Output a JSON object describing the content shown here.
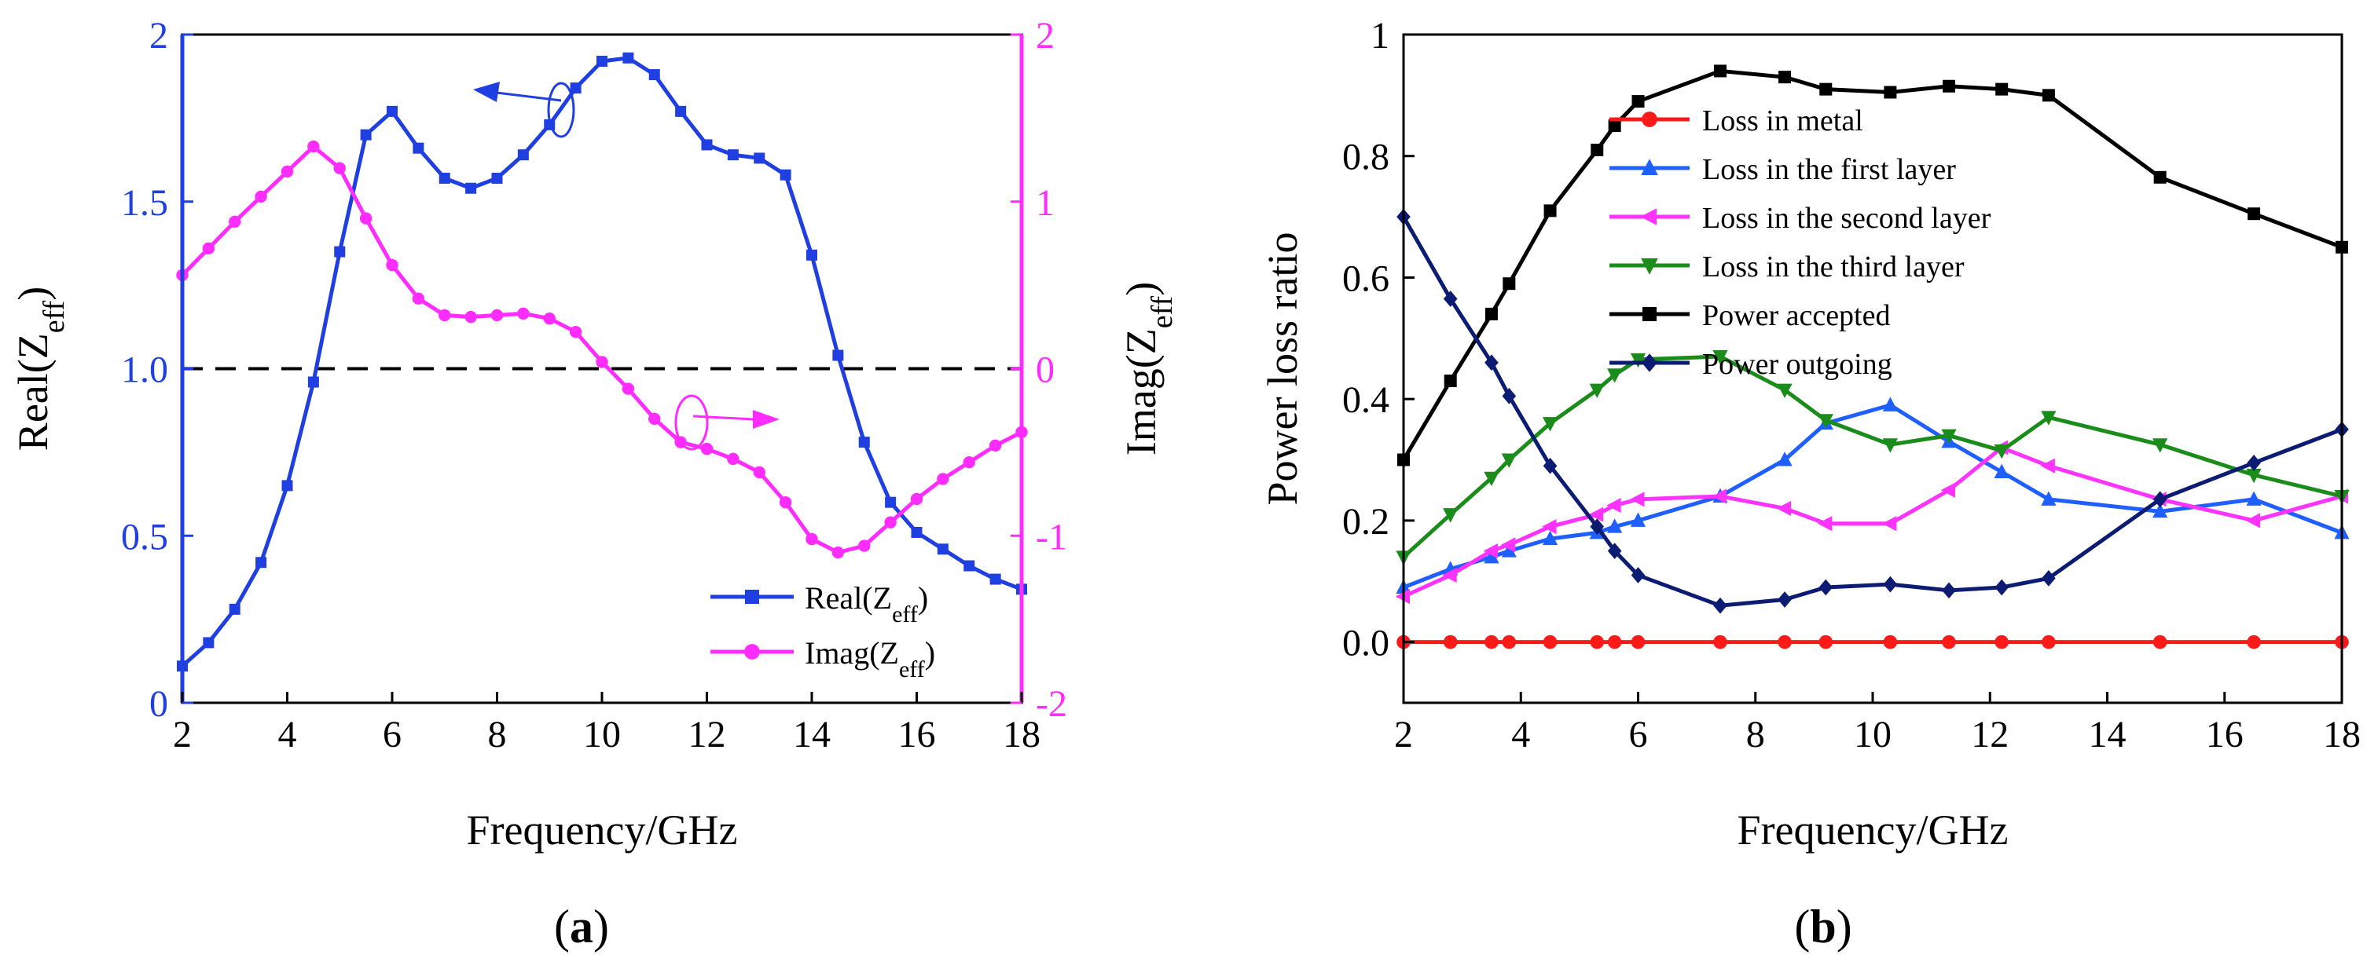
{
  "chart_data": [
    {
      "id": "a",
      "type": "line",
      "panel_label": "a",
      "xlabel": "Frequency/GHz",
      "xlim": [
        2,
        18
      ],
      "xticks": [
        2,
        4,
        6,
        8,
        10,
        12,
        14,
        16,
        18
      ],
      "ylabel_left_main": "Real(Z",
      "ylabel_left_sub": "eff",
      "ylabel_left_close": ")",
      "ylim_left": [
        0,
        2
      ],
      "yticks_left": [
        0,
        0.5,
        1.0,
        1.5,
        2
      ],
      "ytick_labels_left": [
        "0",
        "0.5",
        "1.0",
        "1.5",
        "2"
      ],
      "ylabel_right_main": "Imag(Z",
      "ylabel_right_sub": "eff",
      "ylabel_right_close": ")",
      "ylim_right": [
        -2,
        2
      ],
      "yticks_right": [
        -2,
        -1,
        0,
        1,
        2
      ],
      "ytick_labels_right": [
        "-2",
        "-1",
        "0",
        "1",
        "2"
      ],
      "reference_line": {
        "axis": "left",
        "y": 1.0,
        "style": "dashed",
        "color": "#000000"
      },
      "legend": {
        "position": "bottom-right"
      },
      "series": [
        {
          "name_main": "Real(Z",
          "name_sub": "eff",
          "name_close": ")",
          "axis": "left",
          "color": "#1f3fe0",
          "marker": "square",
          "x": [
            2,
            2.5,
            3,
            3.5,
            4,
            4.5,
            5,
            5.5,
            6,
            6.5,
            7,
            7.5,
            8,
            8.5,
            9,
            9.5,
            10,
            10.5,
            11,
            11.5,
            12,
            12.5,
            13,
            13.5,
            14,
            14.5,
            15,
            15.5,
            16,
            16.5,
            17,
            17.5,
            18
          ],
          "values": [
            0.11,
            0.18,
            0.28,
            0.42,
            0.65,
            0.96,
            1.35,
            1.7,
            1.77,
            1.66,
            1.57,
            1.54,
            1.57,
            1.64,
            1.73,
            1.84,
            1.92,
            1.93,
            1.88,
            1.77,
            1.67,
            1.64,
            1.63,
            1.58,
            1.34,
            1.04,
            0.78,
            0.6,
            0.51,
            0.46,
            0.41,
            0.37,
            0.34
          ]
        },
        {
          "name_main": "Imag(Z",
          "name_sub": "eff",
          "name_close": ")",
          "axis": "right",
          "color": "#ff2cff",
          "marker": "circle",
          "x": [
            2,
            2.5,
            3,
            3.5,
            4,
            4.5,
            5,
            5.5,
            6,
            6.5,
            7,
            7.5,
            8,
            8.5,
            9,
            9.5,
            10,
            10.5,
            11,
            11.5,
            12,
            12.5,
            13,
            13.5,
            14,
            14.5,
            15,
            15.5,
            16,
            16.5,
            17,
            17.5,
            18
          ],
          "values": [
            0.56,
            0.72,
            0.88,
            1.03,
            1.18,
            1.33,
            1.2,
            0.9,
            0.62,
            0.42,
            0.32,
            0.31,
            0.32,
            0.33,
            0.3,
            0.22,
            0.04,
            -0.12,
            -0.3,
            -0.44,
            -0.48,
            -0.54,
            -0.62,
            -0.8,
            -1.02,
            -1.1,
            -1.06,
            -0.92,
            -0.78,
            -0.66,
            -0.56,
            -0.46,
            -0.38
          ]
        }
      ]
    },
    {
      "id": "b",
      "type": "line",
      "panel_label": "b",
      "xlabel": "Frequency/GHz",
      "ylabel": "Power loss ratio",
      "xlim": [
        2,
        18
      ],
      "xticks": [
        2,
        4,
        6,
        8,
        10,
        12,
        14,
        16,
        18
      ],
      "ylim": [
        -0.1,
        1.0
      ],
      "yticks": [
        0.0,
        0.2,
        0.4,
        0.6,
        0.8,
        1.0
      ],
      "ytick_labels": [
        "0.0",
        "0.2",
        "0.4",
        "0.6",
        "0.8",
        "1"
      ],
      "legend": {
        "position": "top-right"
      },
      "x": [
        2,
        2.8,
        3.5,
        3.8,
        4.5,
        5.3,
        5.6,
        6.0,
        7.4,
        8.5,
        9.2,
        10.3,
        11.3,
        12.2,
        13.0,
        14.9,
        16.5,
        18
      ],
      "series": [
        {
          "name": "Loss in metal",
          "color": "#ff1a1a",
          "marker": "circle",
          "values": [
            0.0,
            0.0,
            0.0,
            0.0,
            0.0,
            0.0,
            0.0,
            0.0,
            0.0,
            0.0,
            0.0,
            0.0,
            0.0,
            0.0,
            0.0,
            0.0,
            0.0,
            0.0
          ]
        },
        {
          "name": "Loss in the first layer",
          "color": "#1f5fff",
          "marker": "triangle-up",
          "values": [
            0.09,
            0.12,
            0.14,
            0.15,
            0.17,
            0.18,
            0.19,
            0.2,
            0.24,
            0.3,
            0.36,
            0.39,
            0.33,
            0.28,
            0.235,
            0.215,
            0.235,
            0.18
          ]
        },
        {
          "name": "Loss in the second layer",
          "color": "#ff33ff",
          "marker": "triangle-left",
          "values": [
            0.075,
            0.11,
            0.15,
            0.16,
            0.19,
            0.21,
            0.225,
            0.235,
            0.24,
            0.22,
            0.195,
            0.195,
            0.25,
            0.32,
            0.29,
            0.235,
            0.2,
            0.24
          ]
        },
        {
          "name": "Loss in the third layer",
          "color": "#1a8c1a",
          "marker": "triangle-down",
          "values": [
            0.14,
            0.21,
            0.27,
            0.3,
            0.36,
            0.415,
            0.44,
            0.465,
            0.47,
            0.415,
            0.365,
            0.325,
            0.34,
            0.315,
            0.37,
            0.325,
            0.275,
            0.24
          ]
        },
        {
          "name": "Power accepted",
          "color": "#000000",
          "marker": "square",
          "values": [
            0.3,
            0.43,
            0.54,
            0.59,
            0.71,
            0.81,
            0.85,
            0.89,
            0.94,
            0.93,
            0.91,
            0.905,
            0.915,
            0.91,
            0.9,
            0.765,
            0.705,
            0.65
          ]
        },
        {
          "name": "Power outgoing",
          "color": "#0d1c73",
          "marker": "diamond",
          "values": [
            0.7,
            0.565,
            0.46,
            0.405,
            0.29,
            0.19,
            0.15,
            0.11,
            0.06,
            0.07,
            0.09,
            0.095,
            0.085,
            0.09,
            0.105,
            0.235,
            0.295,
            0.35
          ]
        }
      ]
    }
  ]
}
